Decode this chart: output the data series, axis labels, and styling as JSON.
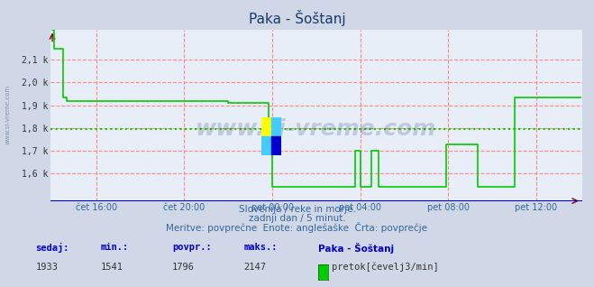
{
  "title": "Paka - Šoštanj",
  "bg_color": "#d0d8e8",
  "plot_bg_color": "#e8eef8",
  "line_color": "#00cc00",
  "avg_line_color": "#00cc00",
  "grid_color": "#ff8888",
  "axis_color": "#0000bb",
  "ylim_min": 1480,
  "ylim_max": 2230,
  "avg_value": 1796,
  "yticks": [
    1600,
    1700,
    1800,
    1900,
    2000,
    2100
  ],
  "ytick_labels": [
    "1,6 k",
    "1,7 k",
    "1,8 k",
    "1,9 k",
    "2,0 k",
    "2,1 k"
  ],
  "xtick_labels": [
    "čet 16:00",
    "čet 20:00",
    "pet 00:00",
    "pet 04:00",
    "pet 08:00",
    "pet 12:00"
  ],
  "xtick_positions": [
    24,
    72,
    120,
    168,
    216,
    264
  ],
  "subtitle1": "Slovenija / reke in morje.",
  "subtitle2": "zadnji dan / 5 minut.",
  "subtitle3": "Meritve: povprečne  Enote: anglešaške  Črta: povprečje",
  "footer_label1": "sedaj:",
  "footer_label2": "min.:",
  "footer_label3": "povpr.:",
  "footer_label4": "maks.:",
  "footer_val1": "1933",
  "footer_val2": "1541",
  "footer_val3": "1796",
  "footer_val4": "2147",
  "footer_station": "Paka - Šoštanj",
  "footer_unit": "pretok[čevelj3/min]",
  "watermark": "www.si-vreme.com",
  "n_points": 289,
  "xtick_n": 6
}
